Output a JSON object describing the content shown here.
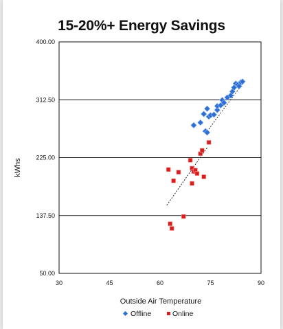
{
  "chart_data": {
    "type": "scatter",
    "title": "15-20%+ Energy Savings",
    "xlabel": "Outside Air Temperature",
    "ylabel": "kWhs",
    "xlim": [
      30,
      90
    ],
    "ylim": [
      50,
      400
    ],
    "x_ticks": [
      "30",
      "45",
      "60",
      "75",
      "90"
    ],
    "y_ticks": [
      "50.00",
      "137.50",
      "225.00",
      "312.50",
      "400.00"
    ],
    "horizontal_gridlines": true,
    "legend_position": "bottom",
    "series": [
      {
        "name": "Offline",
        "color": "#2f6fd0",
        "marker": "diamond",
        "points": [
          [
            70,
            274
          ],
          [
            72,
            278
          ],
          [
            73,
            291
          ],
          [
            74,
            299
          ],
          [
            73.5,
            265
          ],
          [
            74,
            263
          ],
          [
            74.5,
            287
          ],
          [
            75,
            289
          ],
          [
            76,
            290
          ],
          [
            77,
            297
          ],
          [
            77,
            303
          ],
          [
            78,
            304
          ],
          [
            78.5,
            312
          ],
          [
            79,
            308
          ],
          [
            80,
            316
          ],
          [
            81,
            319
          ],
          [
            81.5,
            325
          ],
          [
            82,
            331
          ],
          [
            82.5,
            337
          ],
          [
            83,
            335
          ],
          [
            83.5,
            333
          ],
          [
            84,
            339
          ],
          [
            84.5,
            340
          ]
        ],
        "trendline": {
          "from": [
            74,
            265
          ],
          "to": [
            85,
            340
          ]
        }
      },
      {
        "name": "Online",
        "color": "#d62020",
        "marker": "square",
        "points": [
          [
            63,
            125
          ],
          [
            63.5,
            118
          ],
          [
            67,
            136
          ],
          [
            62.5,
            207
          ],
          [
            65.5,
            203
          ],
          [
            64,
            190
          ],
          [
            69.5,
            186
          ],
          [
            69,
            221
          ],
          [
            69.5,
            209
          ],
          [
            70,
            204
          ],
          [
            70.5,
            206
          ],
          [
            71,
            201
          ],
          [
            72,
            231
          ],
          [
            72.5,
            236
          ],
          [
            73,
            196
          ],
          [
            74.5,
            248
          ]
        ],
        "trendline": {
          "from": [
            62,
            153
          ],
          "to": [
            74,
            240
          ]
        }
      }
    ]
  },
  "legend": {
    "offline_label": "Offline",
    "online_label": "Online"
  }
}
